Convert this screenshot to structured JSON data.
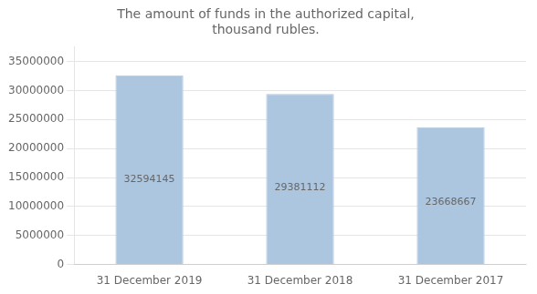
{
  "chart_data": {
    "type": "bar",
    "title": "The amount of funds in the authorized capital,\nthousand rubles.",
    "categories": [
      "31 December 2019",
      "31 December 2018",
      "31 December 2017"
    ],
    "values": [
      32594145,
      29381112,
      23668667
    ],
    "color": "#adc6e0",
    "ylim": [
      0,
      37500000
    ],
    "yticks": [
      0,
      5000000,
      10000000,
      15000000,
      20000000,
      25000000,
      30000000,
      35000000
    ],
    "grid": true,
    "data_labels": true
  }
}
